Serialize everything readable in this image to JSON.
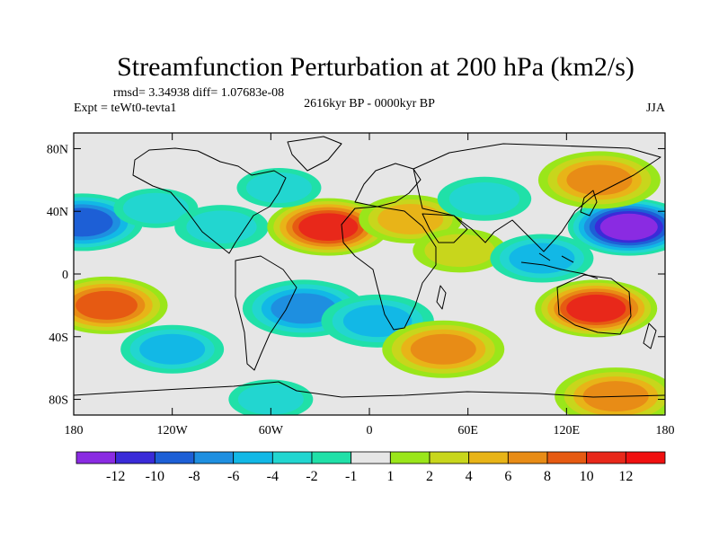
{
  "chart_data": {
    "type": "heatmap",
    "title": "Streamfunction Perturbation at 200 hPa (km2/s)",
    "stats_text": "rmsd= 3.34938  diff= 1.07683e-08",
    "period": "2616kyr BP - 0000kyr BP",
    "experiment": "Expt = teWt0-tevta1",
    "season": "JJA",
    "x_ticks": [
      "180",
      "120W",
      "60W",
      "0",
      "60E",
      "120E",
      "180"
    ],
    "x_tick_values": [
      -180,
      -120,
      -60,
      0,
      60,
      120,
      180
    ],
    "y_ticks": [
      "80N",
      "40N",
      "0",
      "40S",
      "80S"
    ],
    "y_tick_values": [
      80,
      40,
      0,
      -40,
      -80
    ],
    "xlim": [
      -180,
      180
    ],
    "ylim": [
      -90,
      90
    ],
    "colorbar": {
      "labels": [
        "-12",
        "-10",
        "-8",
        "-6",
        "-4",
        "-2",
        "-1",
        "1",
        "2",
        "4",
        "6",
        "8",
        "10",
        "12"
      ],
      "colors": [
        "#8a2be2",
        "#3a2bd8",
        "#1d5fd6",
        "#1e8fe0",
        "#12b8e6",
        "#22d6d0",
        "#20e0a8",
        "#e6e6e6",
        "#9ae61a",
        "#c8d61c",
        "#e8b418",
        "#e88c16",
        "#e65a12",
        "#e8281a",
        "#f01010"
      ]
    },
    "anomalies": [
      {
        "lon": -175,
        "lat": 33,
        "value": -8
      },
      {
        "lon": -160,
        "lat": -20,
        "value": 8
      },
      {
        "lon": -120,
        "lat": -48,
        "value": -4
      },
      {
        "lon": -130,
        "lat": 42,
        "value": -2
      },
      {
        "lon": -90,
        "lat": 30,
        "value": -3
      },
      {
        "lon": -25,
        "lat": 30,
        "value": 10
      },
      {
        "lon": -55,
        "lat": 55,
        "value": -2
      },
      {
        "lon": -40,
        "lat": -22,
        "value": -7
      },
      {
        "lon": 5,
        "lat": -30,
        "value": -5
      },
      {
        "lon": 45,
        "lat": -48,
        "value": 6
      },
      {
        "lon": 25,
        "lat": 35,
        "value": 4
      },
      {
        "lon": 55,
        "lat": 15,
        "value": 3
      },
      {
        "lon": 70,
        "lat": 48,
        "value": -3
      },
      {
        "lon": 158,
        "lat": 30,
        "value": -12
      },
      {
        "lon": 105,
        "lat": 10,
        "value": -4
      },
      {
        "lon": 138,
        "lat": -22,
        "value": 10
      },
      {
        "lon": 140,
        "lat": 60,
        "value": 6
      },
      {
        "lon": 150,
        "lat": -78,
        "value": 6
      },
      {
        "lon": -60,
        "lat": -80,
        "value": -2
      }
    ]
  }
}
